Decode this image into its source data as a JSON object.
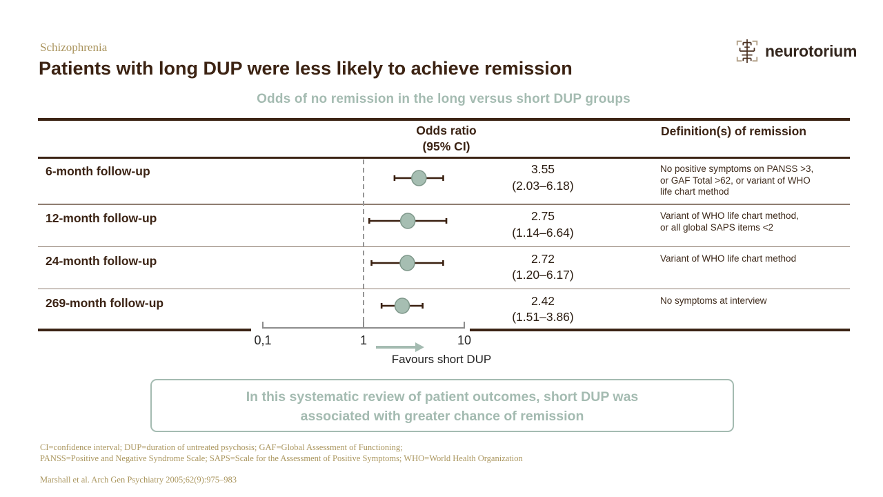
{
  "header": {
    "eyebrow": "Schizophrenia",
    "title": "Patients with long DUP were less likely to achieve remission",
    "logo_text": "neurotorium"
  },
  "table_headers": {
    "odds_line1": "Odds ratio",
    "odds_line2": "(95% CI)",
    "definition": "Definition(s) of remission"
  },
  "chart_data": {
    "type": "forest",
    "title": "Odds of no remission in the long versus short DUP groups",
    "x_scale": "log10",
    "x_range": [
      0.1,
      10
    ],
    "x_tick_values": [
      0.1,
      1,
      10
    ],
    "x_tick_labels": [
      "0,1",
      "1",
      "10"
    ],
    "reference_value": 1,
    "direction_label": "Favours short DUP",
    "rows": [
      {
        "label": "6-month follow-up",
        "or": 3.55,
        "ci": [
          2.03,
          6.18
        ],
        "or_text": "3.55",
        "ci_text": "(2.03–6.18)",
        "definition_lines": [
          "No positive symptoms on PANSS >3,",
          "or GAF Total >62, or variant of WHO",
          "life chart method"
        ]
      },
      {
        "label": "12-month follow-up",
        "or": 2.75,
        "ci": [
          1.14,
          6.64
        ],
        "or_text": "2.75",
        "ci_text": "(1.14–6.64)",
        "definition_lines": [
          "Variant of WHO life chart method,",
          "or all global SAPS items <2"
        ]
      },
      {
        "label": "24-month follow-up",
        "or": 2.72,
        "ci": [
          1.2,
          6.17
        ],
        "or_text": "2.72",
        "ci_text": "(1.20–6.17)",
        "definition_lines": [
          "Variant of WHO life chart method"
        ]
      },
      {
        "label": "269-month follow-up",
        "or": 2.42,
        "ci": [
          1.51,
          3.86
        ],
        "or_text": "2.42",
        "ci_text": "(1.51–3.86)",
        "definition_lines": [
          "No symptoms at interview"
        ]
      }
    ]
  },
  "summary_box": {
    "line1": "In this systematic review of patient outcomes, short DUP was",
    "line2": "associated with greater chance of remission"
  },
  "footnotes": {
    "line1": "CI=confidence interval;  DUP=duration of untreated psychosis; GAF=Global Assessment of Functioning;",
    "line2": "PANSS=Positive and Negative Syndrome Scale;  SAPS=Scale  for the Assessment of Positive Symptoms; WHO=World Health Organization"
  },
  "citation": "Marshall et al.  Arch Gen Psychiatry 2005;62(9):975–983",
  "colors": {
    "brand_brown": "#3B2314",
    "gold": "#A9935C",
    "sage": "#A4BBB1",
    "marker_fill": "#A6BEB2",
    "marker_stroke": "#7E978A",
    "ci_line": "#3A2010",
    "axis_gray": "#8C8C8C",
    "ref_dash": "#969696",
    "tick_text": "#262626"
  }
}
